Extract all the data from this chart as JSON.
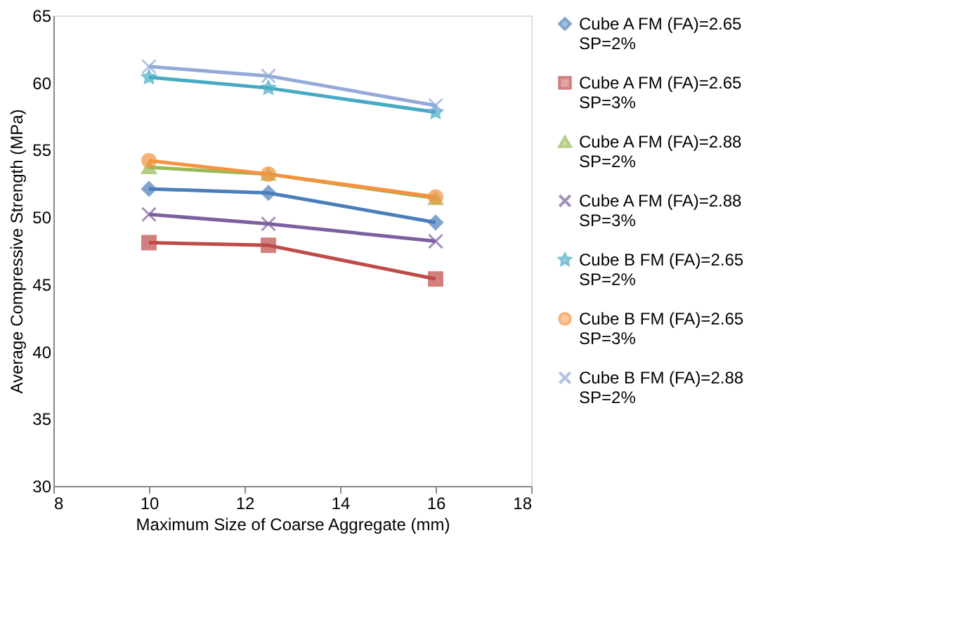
{
  "chart_data": {
    "type": "line",
    "xlabel": "Maximum Size of Coarse Aggregate (mm)",
    "ylabel": "Average Compressive Strength (MPa)",
    "x": [
      10,
      12.5,
      16
    ],
    "xlim": [
      8,
      18
    ],
    "xticks": [
      8,
      10,
      12,
      14,
      16,
      18
    ],
    "ylim": [
      30,
      65
    ],
    "yticks": [
      30,
      35,
      40,
      45,
      50,
      55,
      60,
      65
    ],
    "grid": false,
    "legend": "right",
    "series": [
      {
        "name": "Cube A FM (FA)=2.65 SP=2%",
        "color": "#4a7ebb",
        "marker": "diamond",
        "values": [
          52.1,
          51.8,
          49.6
        ]
      },
      {
        "name": "Cube A FM (FA)=2.65 SP=3%",
        "color": "#be4b48",
        "marker": "square",
        "values": [
          48.1,
          47.9,
          45.4
        ]
      },
      {
        "name": "Cube A FM (FA)=2.88 SP=2%",
        "color": "#98b954",
        "marker": "triangle",
        "values": [
          53.7,
          53.2,
          51.4
        ]
      },
      {
        "name": "Cube A FM (FA)=2.88 SP=3%",
        "color": "#7d60a0",
        "marker": "cross",
        "values": [
          50.2,
          49.5,
          48.2
        ]
      },
      {
        "name": "Cube B FM (FA)=2.65 SP=2%",
        "color": "#46aac5",
        "marker": "star",
        "values": [
          60.4,
          59.6,
          57.8
        ]
      },
      {
        "name": "Cube B FM (FA)=2.65 SP=3%",
        "color": "#f69240",
        "marker": "circle",
        "values": [
          54.2,
          53.2,
          51.5
        ]
      },
      {
        "name": "Cube B FM (FA)=2.88 SP=2%",
        "color": "#93a9d8",
        "marker": "cross",
        "values": [
          61.2,
          60.5,
          58.3
        ]
      }
    ]
  }
}
